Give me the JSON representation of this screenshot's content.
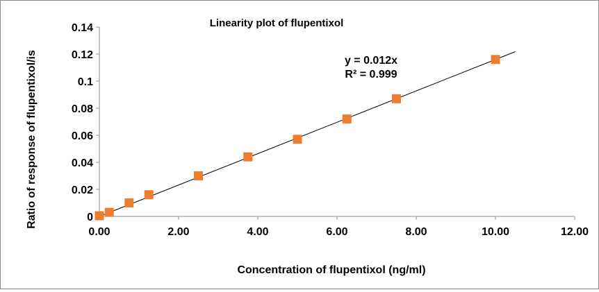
{
  "chart_data": {
    "type": "scatter",
    "title": "Linearity plot of flupentixol",
    "xlabel": "Concentration of flupentixol (ng/ml)",
    "ylabel": "Ratio of response of flupentixol/is",
    "xlim": [
      0,
      12
    ],
    "ylim": [
      0,
      0.14
    ],
    "x_ticks": [
      "0.00",
      "2.00",
      "4.00",
      "6.00",
      "8.00",
      "10.00",
      "12.00"
    ],
    "y_ticks": [
      "0",
      "0.02",
      "0.04",
      "0.06",
      "0.08",
      "0.1",
      "0.12",
      "0.14"
    ],
    "grid": false,
    "legend": "none",
    "series": [
      {
        "marker": "square",
        "color": "#ED7D31",
        "points": [
          {
            "x": 0.0,
            "y": 0.0005
          },
          {
            "x": 0.25,
            "y": 0.003
          },
          {
            "x": 0.75,
            "y": 0.01
          },
          {
            "x": 1.25,
            "y": 0.016
          },
          {
            "x": 2.5,
            "y": 0.03
          },
          {
            "x": 3.75,
            "y": 0.044
          },
          {
            "x": 5.0,
            "y": 0.057
          },
          {
            "x": 6.25,
            "y": 0.072
          },
          {
            "x": 7.5,
            "y": 0.087
          },
          {
            "x": 10.0,
            "y": 0.116
          }
        ]
      }
    ],
    "trendline": {
      "type": "linear",
      "slope": 0.0116,
      "intercept": 0,
      "x_range": [
        0,
        10.5
      ],
      "color": "#000000",
      "equation": "y = 0.012x",
      "r_squared": "R² = 0.999"
    }
  }
}
